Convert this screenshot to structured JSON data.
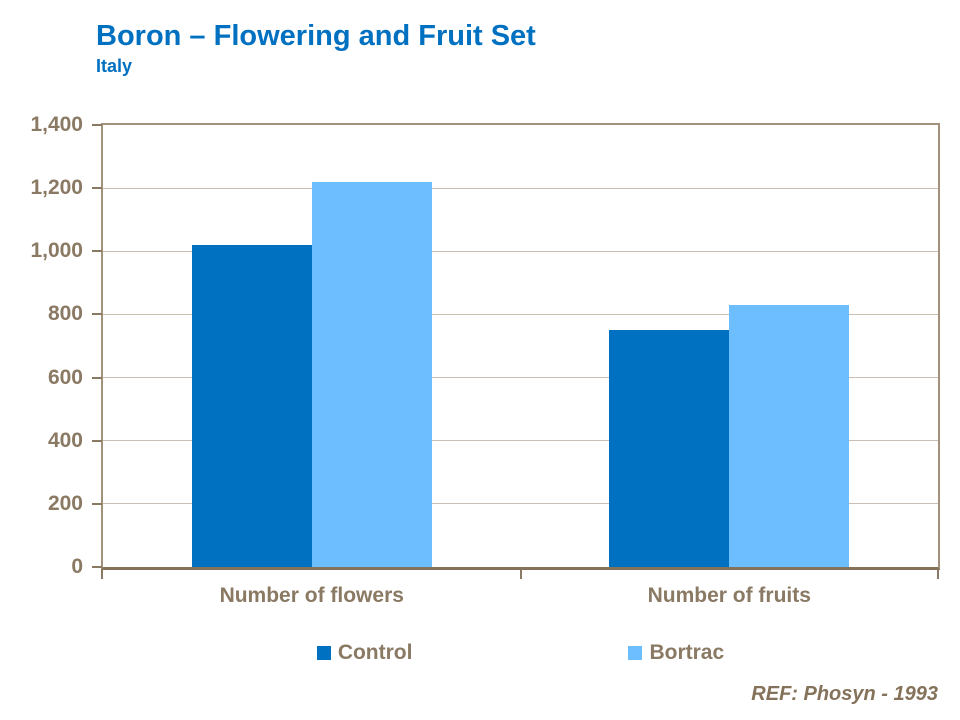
{
  "header": {
    "title": "Boron – Flowering and Fruit Set",
    "subtitle": "Italy"
  },
  "footer": {
    "ref": "REF: Phosyn - 1993"
  },
  "colors": {
    "title_blue": "#0070C0",
    "axis_text_brown": "#8A7963",
    "plot_border_tan": "#A2927C",
    "axis_line_dark_tan": "#84735A",
    "gridline": "#C9C0B3",
    "control_bar": "#0070C0",
    "bortrac_bar": "#6DBEFE"
  },
  "chart_data": {
    "type": "bar",
    "title": "Boron – Flowering and Fruit Set",
    "subtitle": "Italy",
    "categories": [
      "Number of flowers",
      "Number of fruits"
    ],
    "series": [
      {
        "name": "Control",
        "color": "#0070C0",
        "values": [
          1020,
          750
        ]
      },
      {
        "name": "Bortrac",
        "color": "#6DBEFE",
        "values": [
          1220,
          830
        ]
      }
    ],
    "xlabel": "",
    "ylabel": "",
    "ylim": [
      0,
      1400
    ],
    "ytick_step": 200,
    "ytick_labels": [
      "0",
      "200",
      "400",
      "600",
      "800",
      "1,000",
      "1,200",
      "1,400"
    ],
    "grid": true,
    "legend_position": "bottom",
    "annotation": "REF: Phosyn - 1993"
  }
}
